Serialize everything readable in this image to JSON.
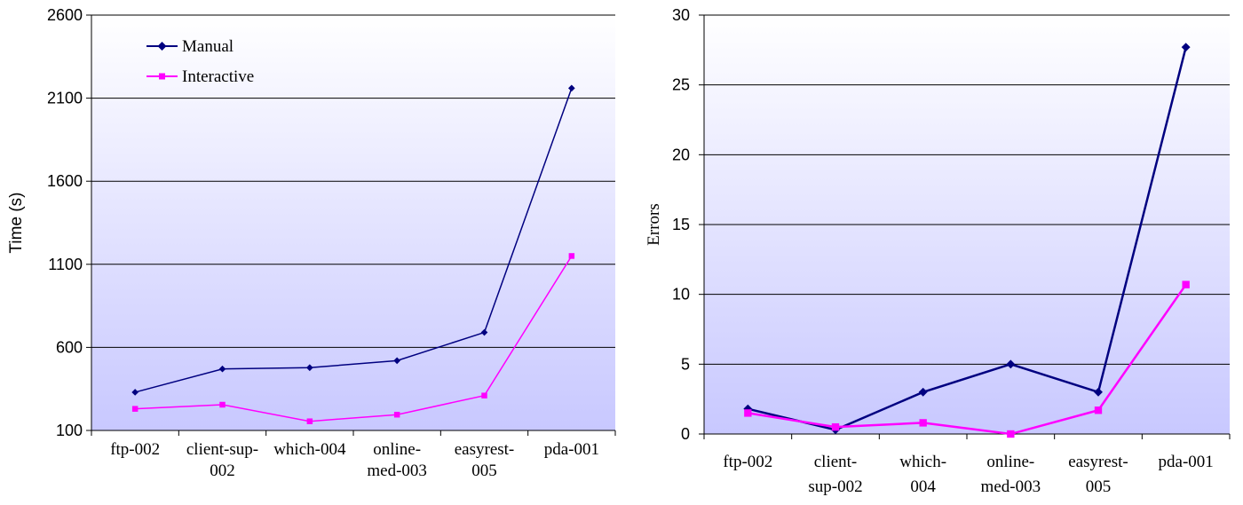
{
  "colors": {
    "manual": "#000080",
    "interactive": "#FF00FF",
    "plot_top": "#FFFFFF",
    "plot_bottom": "#C8C8FF"
  },
  "chart_data": [
    {
      "type": "line",
      "categories": [
        "ftp-002",
        "client-sup-002",
        "which-004",
        "online-med-003",
        "easyrest-005",
        "pda-001"
      ],
      "category_lines": [
        [
          "ftp-002"
        ],
        [
          "client-sup-",
          "002"
        ],
        [
          "which-004"
        ],
        [
          "online-",
          "med-003"
        ],
        [
          "easyrest-",
          "005"
        ],
        [
          "pda-001"
        ]
      ],
      "series": [
        {
          "name": "Manual",
          "values": [
            330,
            470,
            478,
            520,
            690,
            2160
          ]
        },
        {
          "name": "Interactive",
          "values": [
            230,
            255,
            155,
            195,
            310,
            1150
          ]
        }
      ],
      "ylabel": "Time (s)",
      "ylim": [
        100,
        2600
      ],
      "yticks": [
        100,
        600,
        1100,
        1600,
        2100,
        2600
      ],
      "grid": true,
      "legend": "top-left"
    },
    {
      "type": "line",
      "categories": [
        "ftp-002",
        "client-sup-002",
        "which-004",
        "online-med-003",
        "easyrest-005",
        "pda-001"
      ],
      "category_lines": [
        [
          "ftp-002"
        ],
        [
          "client-",
          "sup-002"
        ],
        [
          "which-",
          "004"
        ],
        [
          "online-",
          "med-003"
        ],
        [
          "easyrest-",
          "005"
        ],
        [
          "pda-001"
        ]
      ],
      "series": [
        {
          "name": "Manual",
          "values": [
            1.8,
            0.3,
            3.0,
            5.0,
            3.0,
            27.7
          ]
        },
        {
          "name": "Interactive",
          "values": [
            1.5,
            0.5,
            0.8,
            0.0,
            1.7,
            10.7
          ]
        }
      ],
      "ylabel": "Errors",
      "ylim": [
        0,
        30
      ],
      "yticks": [
        0,
        5,
        10,
        15,
        20,
        25,
        30
      ],
      "grid": true,
      "legend": "none"
    }
  ]
}
